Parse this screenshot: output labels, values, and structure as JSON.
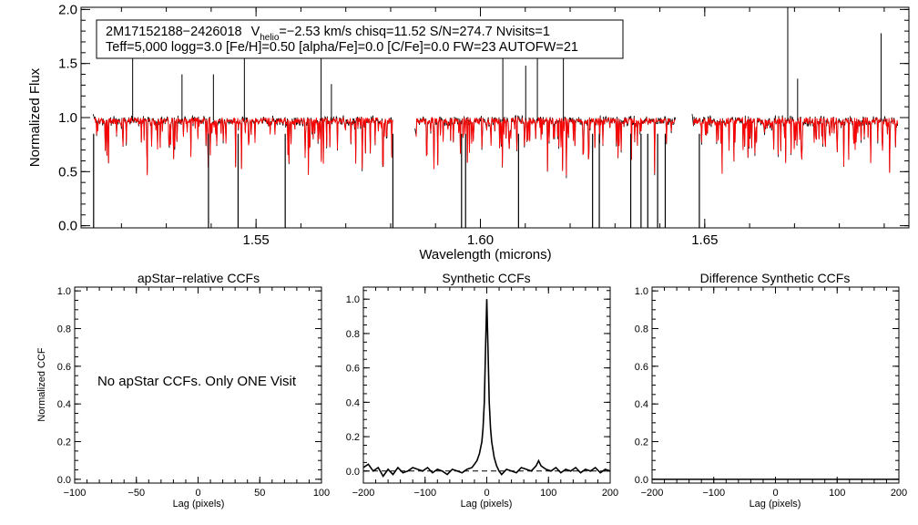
{
  "colors": {
    "observed": "#000000",
    "model": "#ff0000",
    "background": "#ffffff"
  },
  "chart_data": [
    {
      "type": "line",
      "name": "spectrum",
      "xlabel": "Wavelength (microns)",
      "ylabel": "Normalized Flux",
      "xlim": [
        1.511,
        1.6955
      ],
      "ylim": [
        -0.02,
        2.02
      ],
      "xticks": [
        1.55,
        1.6,
        1.65
      ],
      "xtick_labels": [
        "1.55",
        "1.60",
        "1.65"
      ],
      "yticks": [
        0.0,
        0.5,
        1.0,
        1.5,
        2.0
      ],
      "ytick_labels": [
        "0.0",
        "0.5",
        "1.0",
        "1.5",
        "2.0"
      ],
      "info_box": {
        "line1_id": "2M17152188−2426018",
        "line1_v": "V",
        "line1_vsub": "helio",
        "line1_rest": "=−2.53 km/s  chisq=11.52  S/N=274.7  Nvisits=1",
        "line2": "Teff=5,000 logg=3.0 [Fe/H]=0.50 [alpha/Fe]=0.0 [C/Fe]=0.0 FW=23 AUTOFW=21"
      },
      "series": [
        {
          "name": "observed spectrum",
          "color": "#000000"
        },
        {
          "name": "synthetic model",
          "color": "#ff0000"
        }
      ],
      "chips": [
        [
          1.514,
          1.5805
        ],
        [
          1.5857,
          1.6435
        ],
        [
          1.6475,
          1.693
        ]
      ],
      "continuum": 0.97,
      "emission_spikes": [
        [
          1.5225,
          1.56
        ],
        [
          1.5335,
          1.4
        ],
        [
          1.5405,
          1.4
        ],
        [
          1.5474,
          1.68
        ],
        [
          1.5645,
          1.6
        ],
        [
          1.5668,
          1.31
        ],
        [
          1.605,
          1.6
        ],
        [
          1.6101,
          1.48
        ],
        [
          1.6127,
          1.66
        ],
        [
          1.6185,
          1.66
        ],
        [
          1.6685,
          2.02
        ],
        [
          1.6707,
          1.36
        ],
        [
          1.6893,
          1.78
        ]
      ],
      "deep_absorptions": [
        [
          1.5138,
          -0.05
        ],
        [
          1.5394,
          -0.05
        ],
        [
          1.546,
          -0.05
        ],
        [
          1.5565,
          -0.05
        ],
        [
          1.5805,
          -0.05
        ],
        [
          1.5958,
          -0.05
        ],
        [
          1.5967,
          -0.05
        ],
        [
          1.6085,
          -0.05
        ],
        [
          1.625,
          -0.05
        ],
        [
          1.6265,
          -0.05
        ],
        [
          1.6335,
          -0.05
        ],
        [
          1.6358,
          -0.05
        ],
        [
          1.6373,
          -0.05
        ],
        [
          1.6395,
          -0.05
        ],
        [
          1.6412,
          -0.05
        ],
        [
          1.6488,
          -0.05
        ]
      ]
    },
    {
      "type": "line",
      "name": "apStar-relative CCFs",
      "title": "apStar−relative CCFs",
      "xlabel": "Lag (pixels)",
      "ylabel": "Normalized CCF",
      "xlim": [
        -100,
        100
      ],
      "ylim": [
        -0.02,
        1.02
      ],
      "xticks": [
        -100,
        -50,
        0,
        50,
        100
      ],
      "xtick_labels": [
        "−100",
        "−50",
        "0",
        "50",
        "100"
      ],
      "yticks": [
        0.0,
        0.2,
        0.4,
        0.6,
        0.8,
        1.0
      ],
      "ytick_labels": [
        "0.0",
        "0.2",
        "0.4",
        "0.6",
        "0.8",
        "1.0"
      ],
      "annotation": "No apStar CCFs.  Only ONE Visit",
      "series": []
    },
    {
      "type": "line",
      "name": "Synthetic CCFs",
      "title": "Synthetic CCFs",
      "xlabel": "Lag (pixels)",
      "xlim": [
        -200,
        200
      ],
      "ylim": [
        -0.07,
        1.07
      ],
      "xticks": [
        -200,
        -100,
        0,
        100,
        200
      ],
      "xtick_labels": [
        "−200",
        "−100",
        "0",
        "100",
        "200"
      ],
      "yticks": [
        0.0,
        0.2,
        0.4,
        0.6,
        0.8,
        1.0
      ],
      "ytick_labels": [
        "0.0",
        "0.2",
        "0.4",
        "0.6",
        "0.8",
        "1.0"
      ],
      "series": [
        {
          "name": "ccf",
          "x": [
            -200,
            -192,
            -184,
            -176,
            -168,
            -160,
            -152,
            -144,
            -136,
            -128,
            -120,
            -112,
            -104,
            -96,
            -88,
            -80,
            -72,
            -64,
            -56,
            -48,
            -40,
            -32,
            -24,
            -20,
            -16,
            -12,
            -8,
            -6,
            -4,
            -2,
            0,
            2,
            4,
            6,
            8,
            12,
            16,
            20,
            24,
            32,
            40,
            48,
            56,
            64,
            72,
            80,
            84,
            88,
            96,
            104,
            112,
            120,
            128,
            136,
            144,
            152,
            160,
            168,
            176,
            184,
            192,
            200
          ],
          "y": [
            0.02,
            0.04,
            0.0,
            0.02,
            -0.03,
            0.01,
            -0.02,
            0.02,
            -0.01,
            0.0,
            0.02,
            0.01,
            0.0,
            0.02,
            -0.01,
            0.01,
            0.0,
            -0.02,
            0.01,
            0.0,
            -0.01,
            0.01,
            0.02,
            0.04,
            0.06,
            0.1,
            0.17,
            0.25,
            0.4,
            0.7,
            1.0,
            0.7,
            0.4,
            0.25,
            0.17,
            0.08,
            0.03,
            0.0,
            -0.02,
            0.01,
            0.0,
            -0.01,
            0.02,
            0.01,
            0.0,
            0.03,
            0.06,
            0.03,
            0.01,
            0.0,
            0.02,
            -0.01,
            0.01,
            0.0,
            0.02,
            -0.01,
            0.01,
            0.0,
            0.02,
            -0.01,
            0.01,
            0.0
          ]
        },
        {
          "name": "zero line (dashed)",
          "y": 0.0
        }
      ]
    },
    {
      "type": "line",
      "name": "Difference Synthetic CCFs",
      "title": "Difference Synthetic CCFs",
      "xlabel": "Lag (pixels)",
      "xlim": [
        -200,
        200
      ],
      "ylim": [
        -0.02,
        1.02
      ],
      "xticks": [
        -200,
        -100,
        0,
        100,
        200
      ],
      "xtick_labels": [
        "−200",
        "−100",
        "0",
        "100",
        "200"
      ],
      "yticks": [
        0.0,
        0.2,
        0.4,
        0.6,
        0.8,
        1.0
      ],
      "ytick_labels": [
        "0.0",
        "0.2",
        "0.4",
        "0.6",
        "0.8",
        "1.0"
      ],
      "series": [
        {
          "name": "difference",
          "y": 0.0
        }
      ]
    }
  ]
}
